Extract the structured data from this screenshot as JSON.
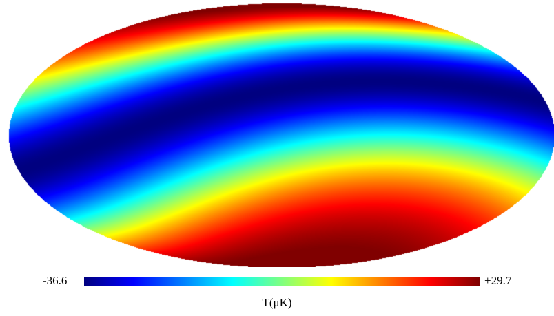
{
  "map": {
    "projection": "mollweide",
    "colormap": "jet",
    "colormap_stops": [
      "#00007f",
      "#0000ff",
      "#007fff",
      "#00ffff",
      "#7fff7f",
      "#ffff00",
      "#ff7f00",
      "#ff0000",
      "#7f0000"
    ]
  },
  "colorbar": {
    "min_label": "-36.6",
    "max_label": "+29.7",
    "unit_label": "T(μK)",
    "min_value": -36.6,
    "max_value": 29.7
  }
}
